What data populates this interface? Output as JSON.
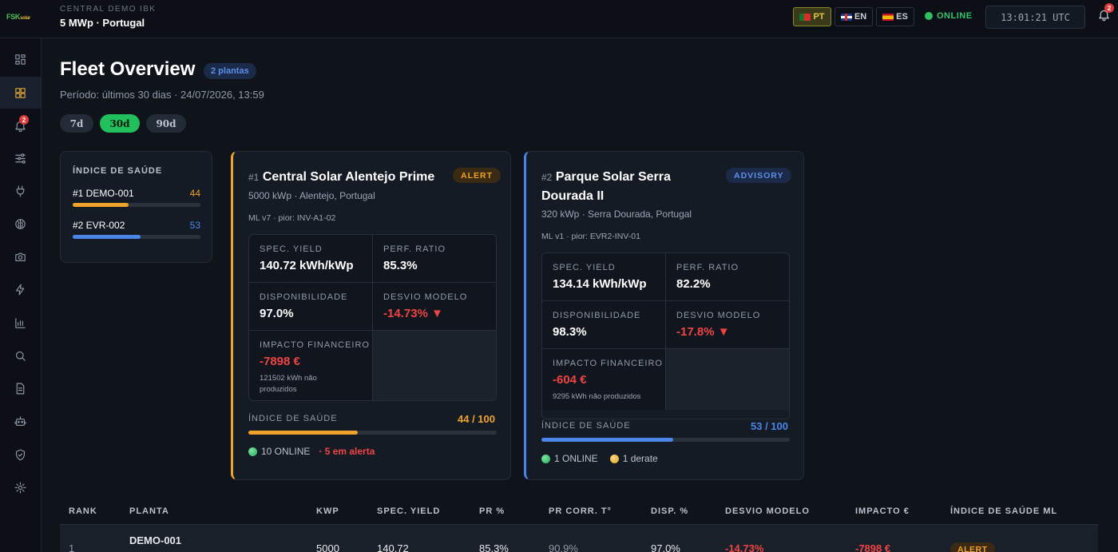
{
  "app": {
    "logo_text": "FSK",
    "logo_suffix": "solar",
    "plant_subtitle": "CENTRAL DEMO IBK",
    "plant_title": "5 MWp · Portugal"
  },
  "header": {
    "languages": [
      {
        "code": "PT",
        "active": true
      },
      {
        "code": "EN",
        "active": false
      },
      {
        "code": "ES",
        "active": false
      }
    ],
    "status": "ONLINE",
    "clock": "13:01:21 UTC",
    "notification_count": "2"
  },
  "sidebar": {
    "items": [
      {
        "icon": "grid-icon"
      },
      {
        "icon": "dashboard-icon",
        "active": true
      },
      {
        "icon": "bell-icon",
        "badge": "2"
      },
      {
        "icon": "sliders-icon"
      },
      {
        "icon": "plug-icon"
      },
      {
        "icon": "brain-icon"
      },
      {
        "icon": "camera-icon"
      },
      {
        "icon": "lightning-icon"
      },
      {
        "icon": "bar-chart-icon"
      },
      {
        "icon": "search-icon"
      },
      {
        "icon": "document-icon"
      },
      {
        "icon": "robot-icon"
      },
      {
        "icon": "shield-icon"
      },
      {
        "icon": "gear-icon"
      }
    ]
  },
  "page": {
    "title": "Fleet Overview",
    "count_badge": "2 plantas",
    "period": "Período: últimos 30 dias · 24/07/2026, 13:59",
    "ranges": [
      {
        "label": "7d",
        "active": false
      },
      {
        "label": "30d",
        "active": true
      },
      {
        "label": "90d",
        "active": false
      }
    ]
  },
  "health_index": {
    "title": "ÍNDICE DE SAÚDE",
    "items": [
      {
        "label": "#1 DEMO-001",
        "value": "44",
        "score": 44,
        "color": "#f0a32a"
      },
      {
        "label": "#2 EVR-002",
        "value": "53",
        "score": 53,
        "color": "#4a86e8"
      }
    ]
  },
  "plants": [
    {
      "rank": "#1",
      "name": "Central Solar Alentejo Prime",
      "status": "ALERT",
      "location": "5000 kWp · Alentejo, Portugal",
      "ml": "ML v7 · pior: INV-A1-02",
      "spec_yield_label": "SPEC. YIELD",
      "spec_yield": "140.72 kWh/kWp",
      "pr_label": "PERF. RATIO",
      "pr": "85.3%",
      "availability_label": "DISPONIBILIDADE",
      "availability": "97.0%",
      "deviation_label": "DESVIO MODELO",
      "deviation": "-14.73% ▼",
      "impact_label": "IMPACTO FINANCEIRO",
      "impact": "-7898 €",
      "impact_note": "121502 kWh não produzidos",
      "health_label": "ÍNDICE DE SAÚDE",
      "health": "44 / 100",
      "health_score": 44,
      "color": "#f0a32a",
      "online": "10 ONLINE",
      "extra": "· 5 em alerta"
    },
    {
      "rank": "#2",
      "name": "Parque Solar Serra Dourada II",
      "status": "ADVISORY",
      "location": "320 kWp · Serra Dourada, Portugal",
      "ml": "ML v1 · pior: EVR2-INV-01",
      "spec_yield_label": "SPEC. YIELD",
      "spec_yield": "134.14 kWh/kWp",
      "pr_label": "PERF. RATIO",
      "pr": "82.2%",
      "availability_label": "DISPONIBILIDADE",
      "availability": "98.3%",
      "deviation_label": "DESVIO MODELO",
      "deviation": "-17.8% ▼",
      "impact_label": "IMPACTO FINANCEIRO",
      "impact": "-604 €",
      "impact_note": "9295 kWh não produzidos",
      "health_label": "ÍNDICE DE SAÚDE",
      "health": "53 / 100",
      "health_score": 53,
      "color": "#4a86e8",
      "online": "1 ONLINE",
      "extra": "1 derate"
    }
  ],
  "table": {
    "headers": [
      "RANK",
      "PLANTA",
      "KWP",
      "SPEC. YIELD",
      "PR %",
      "PR CORR. T°",
      "DISP. %",
      "DESVIO MODELO",
      "IMPACTO €",
      "ÍNDICE DE SAÚDE ML"
    ],
    "rows": [
      [
        "1",
        "DEMO-001",
        "5000",
        "140.72",
        "85.3%",
        "90.9%",
        "97.0%",
        "-14.73%",
        "-7898 €",
        "ALERT"
      ]
    ]
  }
}
